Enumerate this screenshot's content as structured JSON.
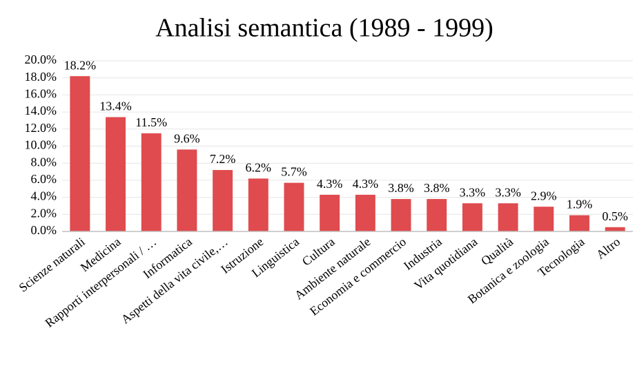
{
  "chart_data": {
    "type": "bar",
    "title": "Analisi semantica (1989 - 1999)",
    "categories": [
      "Scienze naturali",
      "Medicina",
      "Rapporti interpersonali / …",
      "Informatica",
      "Aspetti della vita civile,…",
      "Istruzione",
      "Linguistica",
      "Cultura",
      "Ambiente naturale",
      "Economia e commercio",
      "Industria",
      "Vita quotidiana",
      "Qualità",
      "Botanica e zoologia",
      "Tecnologia",
      "Altro"
    ],
    "values": [
      18.2,
      13.4,
      11.5,
      9.6,
      7.2,
      6.2,
      5.7,
      4.3,
      4.3,
      3.8,
      3.8,
      3.3,
      3.3,
      2.9,
      1.9,
      0.5
    ],
    "value_labels": [
      "18.2%",
      "13.4%",
      "11.5%",
      "9.6%",
      "7.2%",
      "6.2%",
      "5.7%",
      "4.3%",
      "4.3%",
      "3.8%",
      "3.8%",
      "3.3%",
      "3.3%",
      "2.9%",
      "1.9%",
      "0.5%"
    ],
    "color": "#df4b4e",
    "ylim": [
      0,
      20
    ],
    "yticks": [
      {
        "value": 0,
        "label": "0.0%"
      },
      {
        "value": 2,
        "label": "2.0%"
      },
      {
        "value": 4,
        "label": "4.0%"
      },
      {
        "value": 6,
        "label": "6.0%"
      },
      {
        "value": 8,
        "label": "8.0%"
      },
      {
        "value": 10,
        "label": "10.0%"
      },
      {
        "value": 12,
        "label": "12.0%"
      },
      {
        "value": 14,
        "label": "14.0%"
      },
      {
        "value": 16,
        "label": "16.0%"
      },
      {
        "value": 18,
        "label": "18.0%"
      },
      {
        "value": 20,
        "label": "20.0%"
      }
    ],
    "grid": true
  }
}
